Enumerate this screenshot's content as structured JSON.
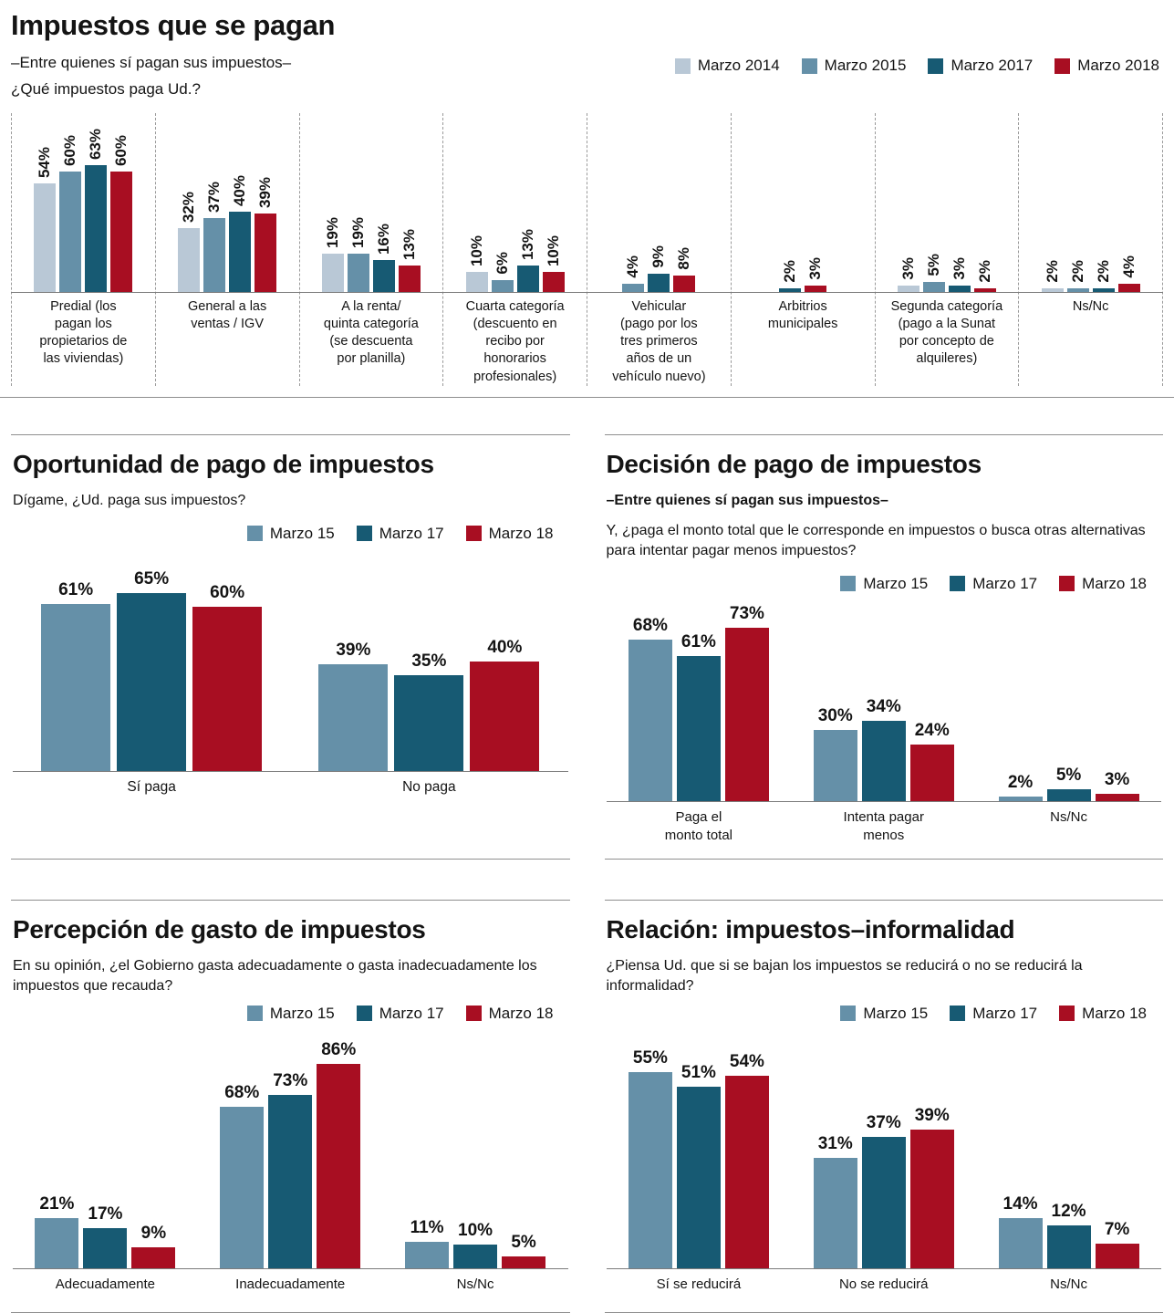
{
  "chart_data": [
    {
      "type": "bar",
      "title": "Impuestos que se pagan",
      "subtitle": "–Entre quienes sí pagan sus impuestos–",
      "question": "¿Qué impuestos paga Ud.?",
      "unit": "%",
      "ylim": [
        0,
        70
      ],
      "grid": false,
      "legend_position": "top-right",
      "series_names": [
        "Marzo 2014",
        "Marzo 2015",
        "Marzo 2017",
        "Marzo 2018"
      ],
      "series_colors": [
        "#b9c8d6",
        "#6590a8",
        "#175a73",
        "#a80e22"
      ],
      "categories": [
        {
          "label": "Predial (los\npagan los\npropietarios de\nlas viviendas)",
          "values": [
            54,
            60,
            63,
            60
          ]
        },
        {
          "label": "General a las\nventas / IGV",
          "values": [
            32,
            37,
            40,
            39
          ]
        },
        {
          "label": "A la renta/\nquinta categoría\n(se descuenta\npor planilla)",
          "values": [
            19,
            19,
            16,
            13
          ]
        },
        {
          "label": "Cuarta categoría\n(descuento en\nrecibo por\nhonorarios\nprofesionales)",
          "values": [
            10,
            6,
            13,
            10
          ]
        },
        {
          "label": "Vehicular\n(pago por los\ntres primeros\naños de un\nvehículo nuevo)",
          "values": [
            null,
            4,
            9,
            8
          ]
        },
        {
          "label": "Arbitrios\nmunicipales",
          "values": [
            null,
            null,
            2,
            3
          ]
        },
        {
          "label": "Segunda categoría\n(pago a la Sunat\npor concepto de\nalquileres)",
          "values": [
            3,
            5,
            3,
            2
          ]
        },
        {
          "label": "Ns/Nc",
          "values": [
            2,
            2,
            2,
            4
          ]
        }
      ]
    },
    {
      "type": "bar",
      "title": "Oportunidad de pago de impuestos",
      "question": "Dígame, ¿Ud. paga sus impuestos?",
      "unit": "%",
      "ylim": [
        0,
        70
      ],
      "grid": false,
      "legend_position": "top",
      "series_names": [
        "Marzo 15",
        "Marzo 17",
        "Marzo 18"
      ],
      "series_colors": [
        "#6590a8",
        "#175a73",
        "#a80e22"
      ],
      "categories": [
        {
          "label": "Sí paga",
          "values": [
            61,
            65,
            60
          ]
        },
        {
          "label": "No paga",
          "values": [
            39,
            35,
            40
          ]
        }
      ]
    },
    {
      "type": "bar",
      "title": "Decisión de pago de impuestos",
      "subtitle": "–Entre quienes sí pagan sus impuestos–",
      "question": "Y, ¿paga el monto total que le corresponde en impuestos o busca otras alternativas para intentar pagar menos impuestos?",
      "unit": "%",
      "ylim": [
        0,
        80
      ],
      "grid": false,
      "legend_position": "top-right",
      "series_names": [
        "Marzo 15",
        "Marzo 17",
        "Marzo 18"
      ],
      "series_colors": [
        "#6590a8",
        "#175a73",
        "#a80e22"
      ],
      "categories": [
        {
          "label": "Paga el\nmonto total",
          "values": [
            68,
            61,
            73
          ]
        },
        {
          "label": "Intenta pagar\nmenos",
          "values": [
            30,
            34,
            24
          ]
        },
        {
          "label": "Ns/Nc",
          "values": [
            2,
            5,
            3
          ]
        }
      ]
    },
    {
      "type": "bar",
      "title": "Percepción de gasto de impuestos",
      "question": "En su opinión, ¿el Gobierno gasta adecuadamente o gasta inadecuadamente los impuestos que recauda?",
      "unit": "%",
      "ylim": [
        0,
        90
      ],
      "grid": false,
      "legend_position": "top-right",
      "series_names": [
        "Marzo 15",
        "Marzo 17",
        "Marzo 18"
      ],
      "series_colors": [
        "#6590a8",
        "#175a73",
        "#a80e22"
      ],
      "categories": [
        {
          "label": "Adecuadamente",
          "values": [
            21,
            17,
            9
          ]
        },
        {
          "label": "Inadecuadamente",
          "values": [
            68,
            73,
            86
          ]
        },
        {
          "label": "Ns/Nc",
          "values": [
            11,
            10,
            5
          ]
        }
      ]
    },
    {
      "type": "bar",
      "title": "Relación: impuestos–informalidad",
      "question": "¿Piensa Ud. que si se bajan los impuestos se reducirá o no se reducirá la informalidad?",
      "unit": "%",
      "ylim": [
        0,
        60
      ],
      "grid": false,
      "legend_position": "top-right",
      "series_names": [
        "Marzo 15",
        "Marzo 17",
        "Marzo 18"
      ],
      "series_colors": [
        "#6590a8",
        "#175a73",
        "#a80e22"
      ],
      "categories": [
        {
          "label": "Sí se reducirá",
          "values": [
            55,
            51,
            54
          ]
        },
        {
          "label": "No se reducirá",
          "values": [
            31,
            37,
            39
          ]
        },
        {
          "label": "Ns/Nc",
          "values": [
            14,
            12,
            7
          ]
        }
      ]
    }
  ]
}
